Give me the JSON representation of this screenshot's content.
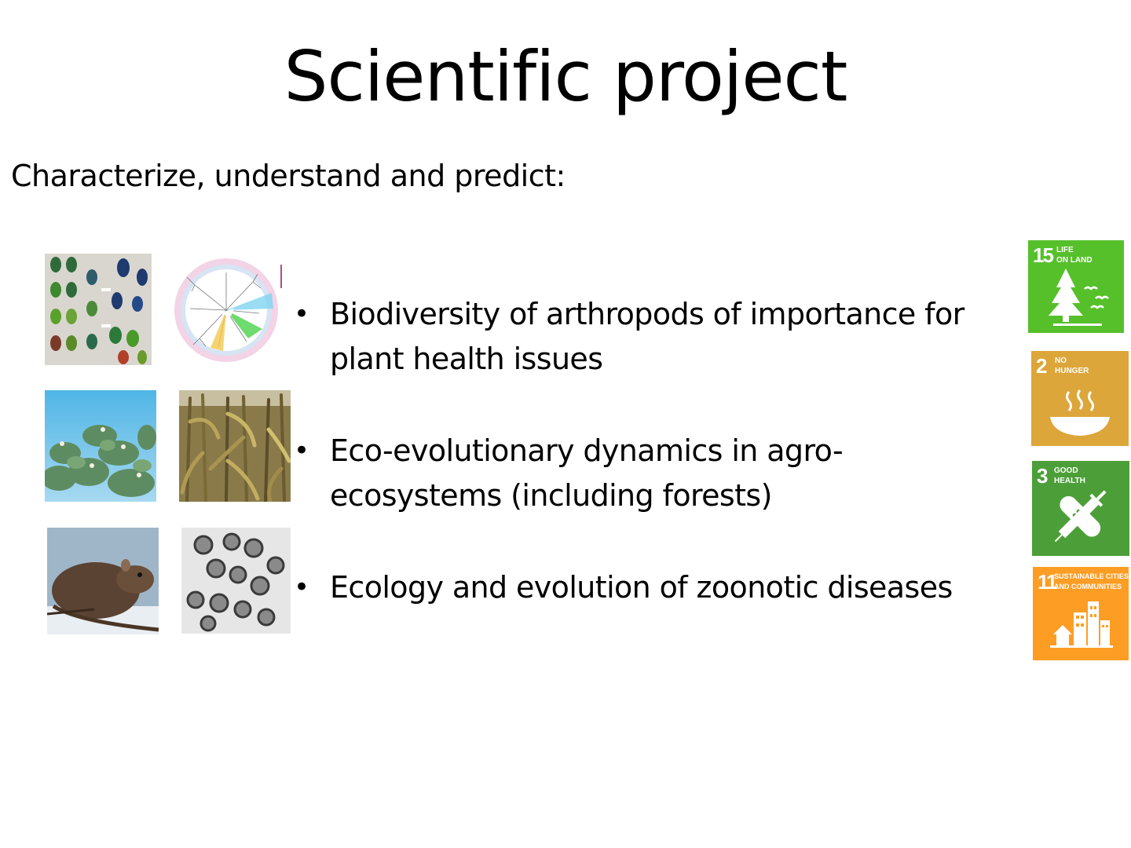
{
  "slide": {
    "title": "Scientific project",
    "subtitle": "Characterize, understand and predict:",
    "bullets": [
      "Biodiversity of arthropods of importance for plant health issues",
      "Eco-evolutionary dynamics in agro-ecosystems (including forests)",
      "Ecology and evolution of zoonotic diseases"
    ],
    "bullet_glyph": "•"
  },
  "sdg_badges": [
    {
      "number": "15",
      "label": "LIFE\nON LAND",
      "color": "#56c02b",
      "icon": "tree-birds-icon"
    },
    {
      "number": "2",
      "label": "NO\nHUNGER",
      "color": "#dda63a",
      "icon": "bowl-icon"
    },
    {
      "number": "3",
      "label": "GOOD\nHEALTH",
      "color": "#4c9f38",
      "icon": "health-icon"
    },
    {
      "number": "11",
      "label": "SUSTAINABLE CITIES\nAND COMMUNITIES",
      "color": "#fd9d24",
      "icon": "city-icon"
    }
  ],
  "images": [
    {
      "name": "beetles-photo"
    },
    {
      "name": "phylogenetic-tree-figure"
    },
    {
      "name": "pine-tree-photo"
    },
    {
      "name": "corn-field-photo"
    },
    {
      "name": "rat-photo"
    },
    {
      "name": "virus-micrograph"
    }
  ]
}
